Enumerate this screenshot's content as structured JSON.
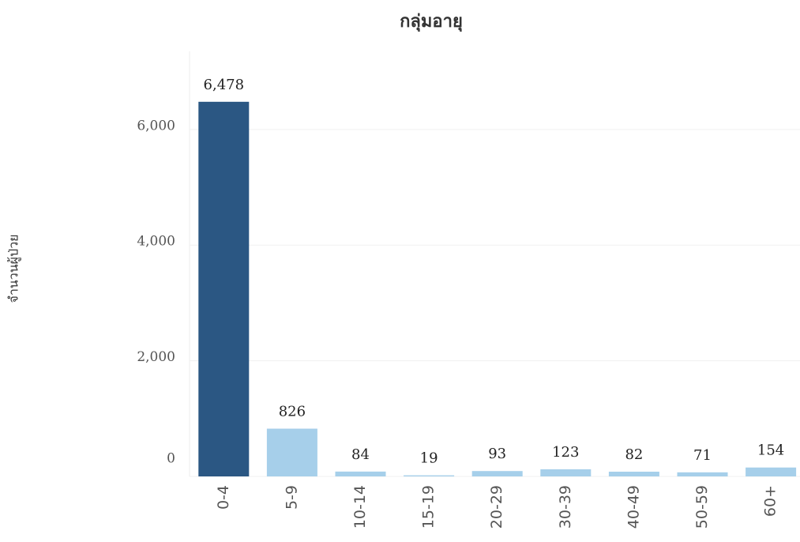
{
  "chart_data": {
    "type": "bar",
    "title": "กลุ่มอายุ",
    "y_label": "จำนวนผู้ป่วย",
    "categories": [
      "0-4",
      "5-9",
      "10-14",
      "15-19",
      "20-29",
      "30-39",
      "40-49",
      "50-59",
      "60+"
    ],
    "values": [
      6478,
      826,
      84,
      19,
      93,
      123,
      82,
      71,
      154
    ],
    "value_labels": [
      "6,478",
      "826",
      "84",
      "19",
      "93",
      "123",
      "82",
      "71",
      "154"
    ],
    "colors": [
      "#2b5783",
      "#a6cfea",
      "#a6cfea",
      "#a6cfea",
      "#a6cfea",
      "#a6cfea",
      "#a6cfea",
      "#a6cfea",
      "#a6cfea"
    ],
    "ylim": [
      0,
      7350
    ],
    "yticks": [
      0,
      {
        "value": 2000,
        "label": "2,000"
      },
      {
        "value": 4000,
        "label": "4,000"
      },
      {
        "value": 6000,
        "label": "6,000"
      }
    ],
    "grid": true
  }
}
